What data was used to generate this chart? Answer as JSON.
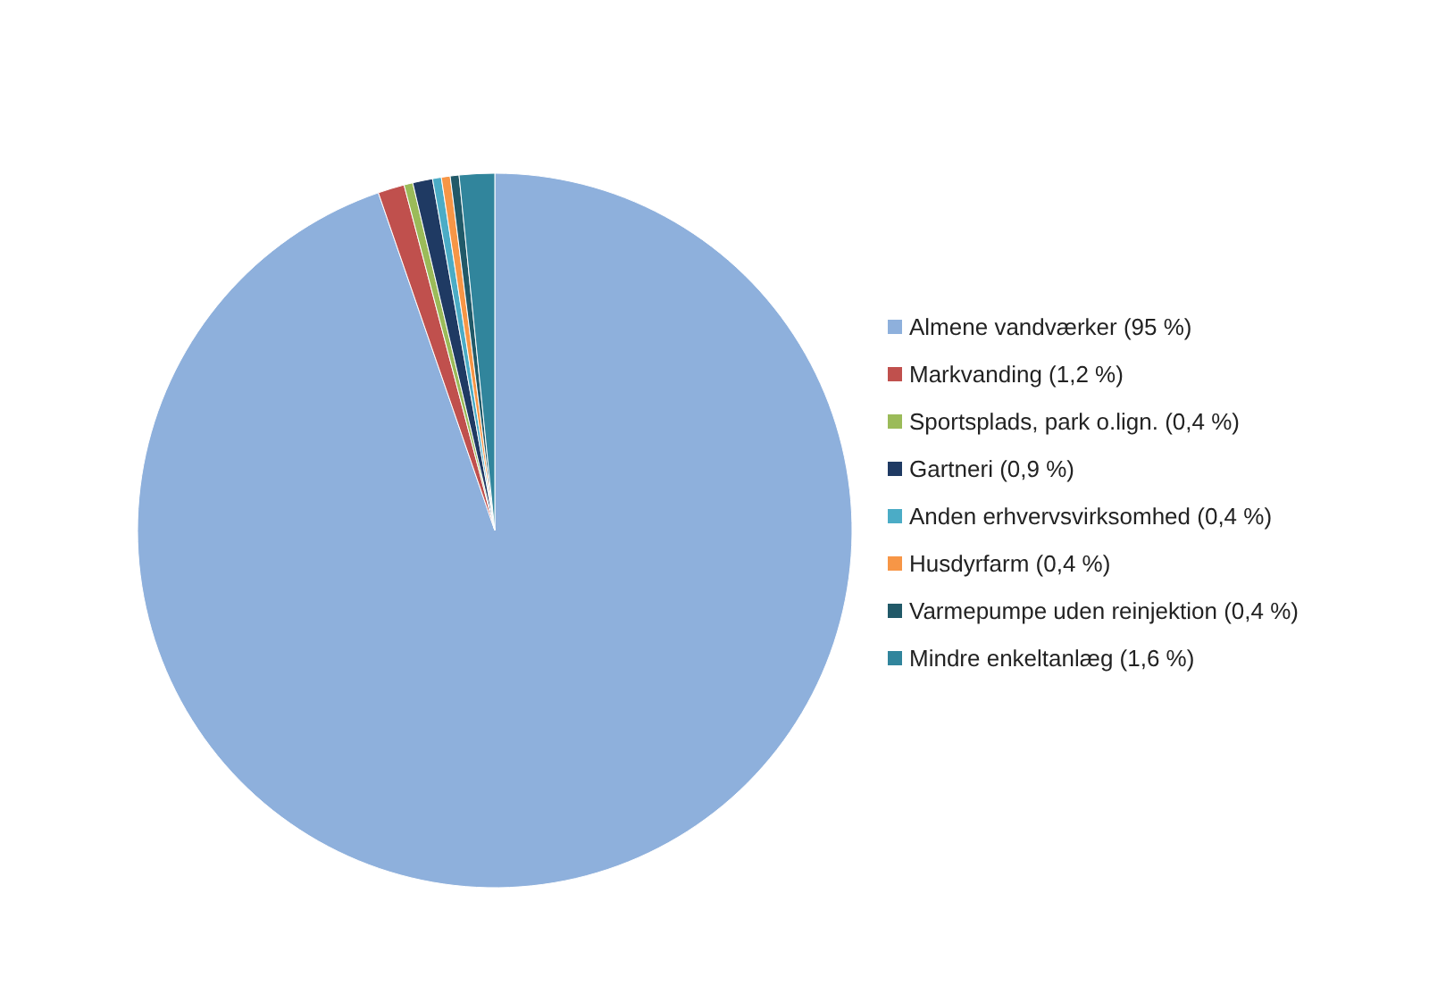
{
  "chart_data": {
    "type": "pie",
    "categories": [
      "Almene vandværker (95 %)",
      "Markvanding (1,2 %)",
      "Sportsplads, park o.lign. (0,4 %)",
      "Gartneri (0,9 %)",
      "Anden erhvervsvirksomhed (0,4 %)",
      "Husdyrfarm (0,4 %)",
      "Varmepumpe uden reinjektion (0,4 %)",
      "Mindre enkeltanlæg (1,6 %)"
    ],
    "values": [
      95,
      1.2,
      0.4,
      0.9,
      0.4,
      0.4,
      0.4,
      1.6
    ],
    "colors": [
      "#8eb0dc",
      "#c0504d",
      "#9bbb59",
      "#1f3a63",
      "#4bacc6",
      "#f79646",
      "#215968",
      "#31859c"
    ],
    "legend": "right"
  }
}
